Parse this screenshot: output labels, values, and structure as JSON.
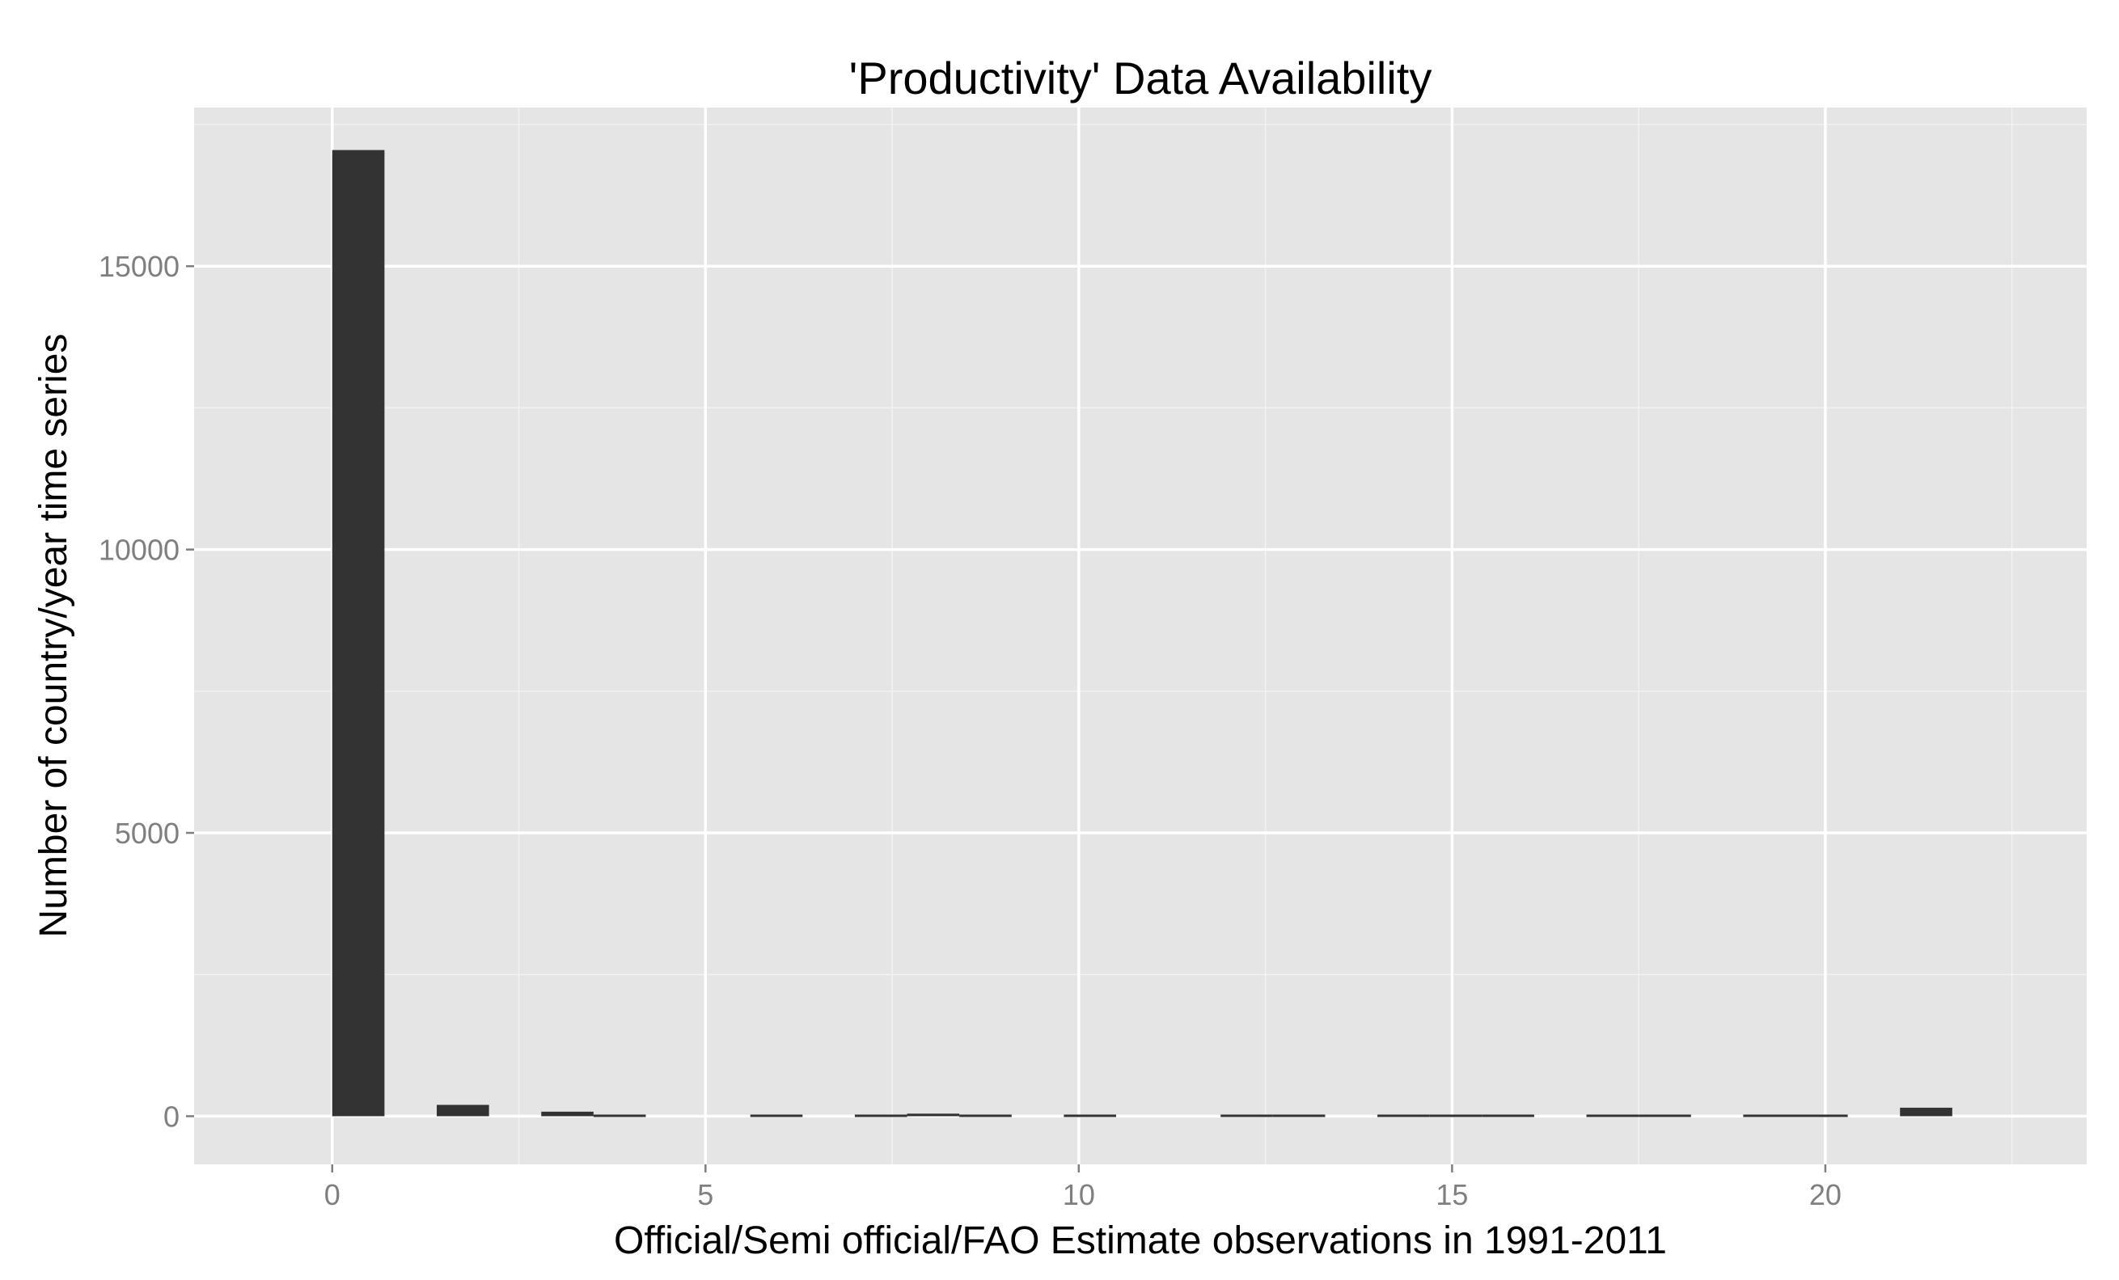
{
  "chart_data": {
    "type": "bar",
    "title": "'Productivity' Data Availability",
    "xlabel": "Official/Semi official/FAO Estimate observations in 1991-2011",
    "ylabel": "Number of country/year time series",
    "xlim": [
      -1.85,
      23.5
    ],
    "ylim": [
      -850,
      17800
    ],
    "x_ticks": [
      0,
      5,
      10,
      15,
      20
    ],
    "y_ticks": [
      0,
      5000,
      10000,
      15000
    ],
    "x_tick_labels": [
      "0",
      "5",
      "10",
      "15",
      "20"
    ],
    "y_tick_labels": [
      "0",
      "5000",
      "10000",
      "15000"
    ],
    "bin_width": 0.7,
    "bins": [
      {
        "x0": 0.0,
        "value": 17050
      },
      {
        "x0": 0.7,
        "value": 0
      },
      {
        "x0": 1.4,
        "value": 200
      },
      {
        "x0": 2.1,
        "value": 0
      },
      {
        "x0": 2.8,
        "value": 80
      },
      {
        "x0": 3.5,
        "value": 15
      },
      {
        "x0": 4.2,
        "value": 0
      },
      {
        "x0": 4.9,
        "value": 0
      },
      {
        "x0": 5.6,
        "value": 15
      },
      {
        "x0": 6.3,
        "value": 0
      },
      {
        "x0": 7.0,
        "value": 10
      },
      {
        "x0": 7.7,
        "value": 45
      },
      {
        "x0": 8.4,
        "value": 15
      },
      {
        "x0": 9.1,
        "value": 0
      },
      {
        "x0": 9.8,
        "value": 15
      },
      {
        "x0": 10.5,
        "value": 0
      },
      {
        "x0": 11.2,
        "value": 0
      },
      {
        "x0": 11.9,
        "value": 12
      },
      {
        "x0": 12.6,
        "value": 12
      },
      {
        "x0": 13.3,
        "value": 0
      },
      {
        "x0": 14.0,
        "value": 12
      },
      {
        "x0": 14.7,
        "value": 12
      },
      {
        "x0": 15.4,
        "value": 12
      },
      {
        "x0": 16.1,
        "value": 0
      },
      {
        "x0": 16.8,
        "value": 12
      },
      {
        "x0": 17.5,
        "value": 12
      },
      {
        "x0": 18.2,
        "value": 0
      },
      {
        "x0": 18.9,
        "value": 20
      },
      {
        "x0": 19.6,
        "value": 20
      },
      {
        "x0": 20.3,
        "value": 0
      },
      {
        "x0": 21.0,
        "value": 150
      }
    ],
    "grid": true,
    "colors": {
      "panel_background": "#e5e5e5",
      "grid_major": "#ffffff",
      "grid_minor": "#f2f2f2",
      "bar_fill": "#333333",
      "tick_label": "#7f7f7f",
      "tick_mark": "#7f7f7f"
    }
  }
}
